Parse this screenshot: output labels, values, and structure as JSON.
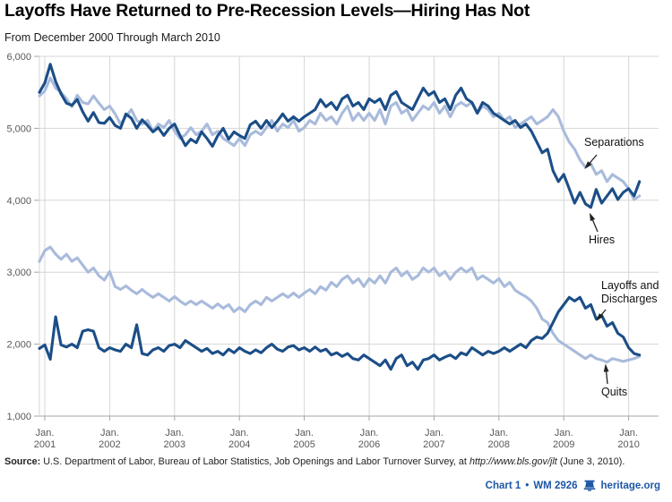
{
  "header": {
    "title": "Layoffs Have Returned to Pre-Recession Levels—Hiring Has Not",
    "subtitle": "From December 2000 Through March 2010"
  },
  "source": {
    "label": "Source:",
    "text": " U.S. Department of Labor, Bureau of Labor Statistics, Job Openings and Labor Turnover Survey, at ",
    "url": "http://www.bls.gov/jlt",
    "suffix": " (June 3, 2010)."
  },
  "footer": {
    "chart_ref": "Chart 1",
    "bullet": "•",
    "doc_ref": "WM 2926",
    "brand": "heritage.org"
  },
  "colors": {
    "dark_line": "#1b4e87",
    "light_line": "#a9bbdc",
    "gridline": "#d6d6d6",
    "axis": "#a5a5a5",
    "tick_text": "#595959",
    "footer_blue": "#1d57a5"
  },
  "chart_data": {
    "type": "line",
    "title": "Layoffs Have Returned to Pre-Recession Levels—Hiring Has Not",
    "subtitle": "From December 2000 Through March 2010",
    "x_unit": "monthly",
    "x_start": "December 2000",
    "x_end": "March 2010",
    "ylim": [
      1000,
      6000
    ],
    "grid": true,
    "y_ticks": [
      6000,
      5000,
      4000,
      3000,
      2000,
      1000
    ],
    "y_tick_labels": [
      "6,000",
      "5,000",
      "4,000",
      "3,000",
      "2,000",
      "1,000"
    ],
    "x_tick_month_label": "Jan.",
    "x_tick_years": [
      "2001",
      "2002",
      "2003",
      "2004",
      "2005",
      "2006",
      "2007",
      "2008",
      "2009",
      "2010"
    ],
    "annotations": {
      "separations": "Separations",
      "hires": "Hires",
      "layoffs_line1": "Layoffs and",
      "layoffs_line2": "Discharges",
      "quits": "Quits"
    },
    "series": [
      {
        "key": "separations",
        "name": "Separations",
        "color": "#a9bbdc",
        "values": [
          5450,
          5520,
          5700,
          5560,
          5500,
          5410,
          5300,
          5460,
          5360,
          5340,
          5450,
          5350,
          5260,
          5310,
          5200,
          5060,
          5160,
          5260,
          5110,
          5060,
          5110,
          4960,
          5060,
          5010,
          5110,
          4960,
          4860,
          4910,
          5010,
          4910,
          4960,
          5060,
          4910,
          4960,
          4860,
          4810,
          4760,
          4860,
          4760,
          4910,
          4960,
          4910,
          5010,
          5110,
          4960,
          5060,
          5010,
          5110,
          4960,
          5010,
          5110,
          5060,
          5210,
          5110,
          5160,
          5060,
          5210,
          5310,
          5110,
          5210,
          5110,
          5210,
          5110,
          5260,
          5060,
          5310,
          5360,
          5210,
          5260,
          5110,
          5210,
          5310,
          5260,
          5360,
          5210,
          5310,
          5160,
          5310,
          5360,
          5310,
          5360,
          5210,
          5310,
          5260,
          5160,
          5210,
          5110,
          5160,
          5010,
          5060,
          5110,
          5160,
          5060,
          5110,
          5160,
          5260,
          5160,
          4960,
          4810,
          4710,
          4560,
          4460,
          4510,
          4360,
          4410,
          4260,
          4360,
          4310,
          4260,
          4160,
          4010,
          4060
        ]
      },
      {
        "key": "quits",
        "name": "Quits",
        "color": "#a9bbdc",
        "values": [
          3150,
          3300,
          3350,
          3250,
          3180,
          3250,
          3150,
          3200,
          3100,
          3000,
          3060,
          2950,
          2890,
          3010,
          2800,
          2760,
          2810,
          2750,
          2700,
          2760,
          2700,
          2650,
          2700,
          2650,
          2600,
          2660,
          2600,
          2550,
          2600,
          2550,
          2600,
          2550,
          2500,
          2560,
          2500,
          2550,
          2450,
          2510,
          2450,
          2550,
          2600,
          2550,
          2650,
          2600,
          2650,
          2700,
          2650,
          2710,
          2650,
          2710,
          2760,
          2700,
          2800,
          2750,
          2860,
          2800,
          2900,
          2950,
          2850,
          2910,
          2800,
          2910,
          2850,
          2950,
          2850,
          3000,
          3060,
          2950,
          3010,
          2900,
          2950,
          3060,
          3000,
          3060,
          2950,
          3010,
          2900,
          3000,
          3060,
          3000,
          3060,
          2900,
          2950,
          2900,
          2850,
          2910,
          2800,
          2860,
          2750,
          2700,
          2660,
          2600,
          2500,
          2350,
          2300,
          2150,
          2050,
          2000,
          1950,
          1900,
          1850,
          1800,
          1850,
          1800,
          1780,
          1750,
          1800,
          1780,
          1760,
          1780,
          1800,
          1830
        ]
      },
      {
        "key": "hires",
        "name": "Hires",
        "color": "#1b4e87",
        "values": [
          5500,
          5630,
          5890,
          5650,
          5480,
          5350,
          5320,
          5400,
          5230,
          5100,
          5220,
          5080,
          5070,
          5150,
          5040,
          5000,
          5200,
          5140,
          5000,
          5120,
          5040,
          4950,
          5010,
          4900,
          5000,
          5060,
          4900,
          4760,
          4850,
          4800,
          4950,
          4860,
          4750,
          4900,
          5000,
          4850,
          4950,
          4900,
          4860,
          5050,
          5100,
          5000,
          5110,
          5010,
          5100,
          5200,
          5100,
          5160,
          5100,
          5160,
          5210,
          5260,
          5400,
          5300,
          5360,
          5260,
          5410,
          5460,
          5310,
          5360,
          5260,
          5410,
          5360,
          5410,
          5260,
          5460,
          5510,
          5360,
          5310,
          5260,
          5410,
          5560,
          5460,
          5510,
          5360,
          5410,
          5260,
          5460,
          5560,
          5410,
          5360,
          5210,
          5360,
          5310,
          5210,
          5160,
          5110,
          5060,
          5110,
          5010,
          5060,
          4960,
          4810,
          4660,
          4710,
          4410,
          4260,
          4360,
          4160,
          3960,
          4110,
          3950,
          3900,
          4150,
          3960,
          4060,
          4160,
          4010,
          4110,
          4160,
          4060,
          4260
        ]
      },
      {
        "key": "layoffs",
        "name": "Layoffs and Discharges",
        "color": "#1b4e87",
        "values": [
          1940,
          1990,
          1790,
          2380,
          1990,
          1960,
          2000,
          1950,
          2180,
          2200,
          2180,
          1950,
          1900,
          1950,
          1920,
          1900,
          2000,
          1950,
          2270,
          1870,
          1850,
          1920,
          1950,
          1900,
          1980,
          2000,
          1950,
          2050,
          2000,
          1950,
          1900,
          1940,
          1870,
          1900,
          1850,
          1930,
          1880,
          1950,
          1900,
          1870,
          1920,
          1880,
          1950,
          2000,
          1930,
          1900,
          1960,
          1980,
          1920,
          1950,
          1900,
          1960,
          1900,
          1930,
          1850,
          1880,
          1830,
          1870,
          1800,
          1780,
          1850,
          1800,
          1750,
          1700,
          1780,
          1650,
          1800,
          1850,
          1700,
          1750,
          1650,
          1780,
          1800,
          1850,
          1780,
          1820,
          1850,
          1800,
          1880,
          1850,
          1950,
          1900,
          1850,
          1900,
          1870,
          1900,
          1950,
          1900,
          1950,
          2000,
          1950,
          2050,
          2100,
          2080,
          2150,
          2300,
          2450,
          2550,
          2650,
          2600,
          2650,
          2500,
          2550,
          2350,
          2400,
          2250,
          2300,
          2150,
          2100,
          1950,
          1870,
          1850
        ]
      }
    ]
  }
}
